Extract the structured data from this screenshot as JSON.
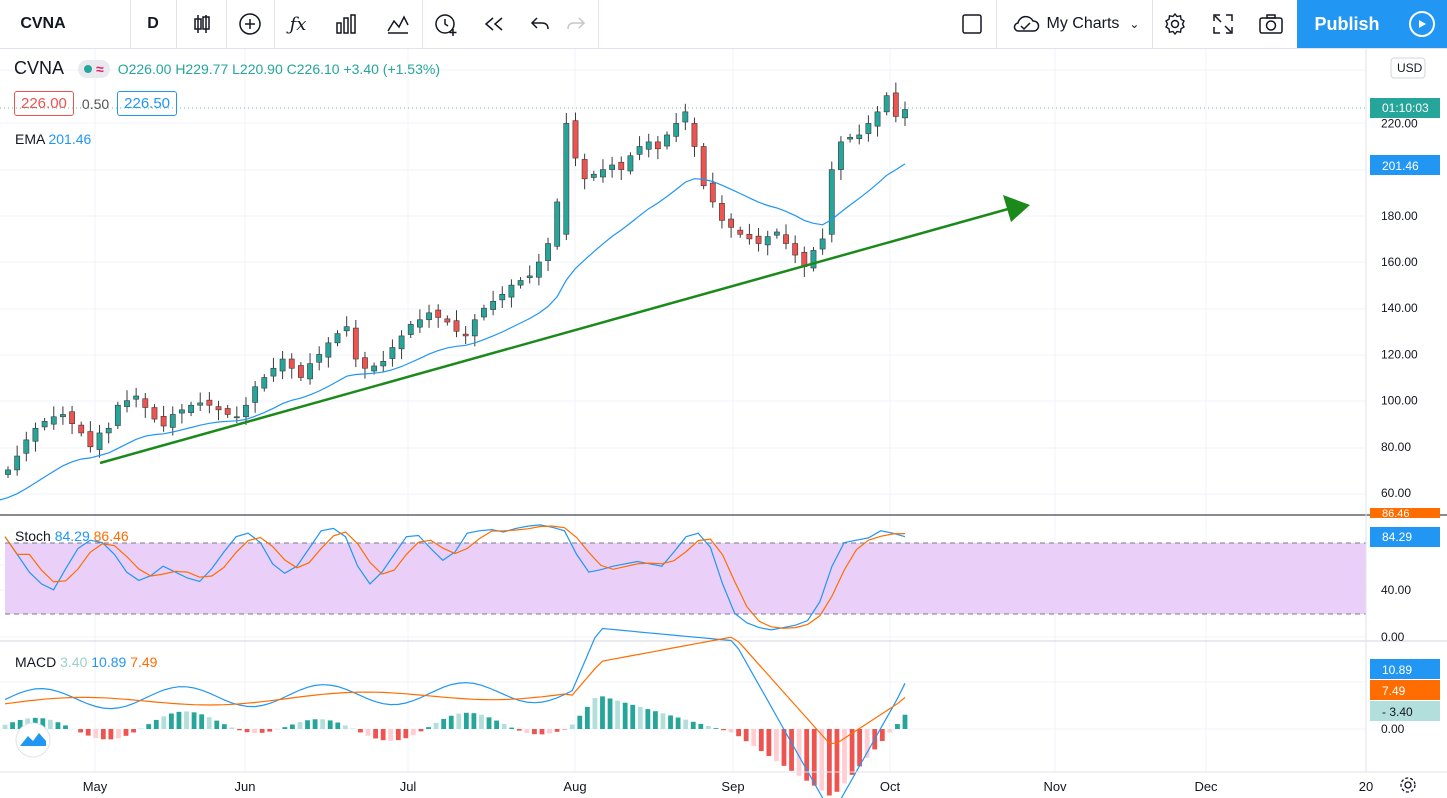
{
  "toolbar": {
    "symbol": "CVNA",
    "interval": "D",
    "layout": "My Charts",
    "publish": "Publish"
  },
  "legend": {
    "symbol": "CVNA",
    "open": "O226.00",
    "high": "H229.77",
    "low": "L220.90",
    "close": "C226.10",
    "change": "+3.40 (+1.53%)",
    "bid": "226.00",
    "spread": "0.50",
    "ask": "226.50",
    "ema_name": "EMA",
    "ema_value": "201.46"
  },
  "stoch": {
    "name": "Stoch",
    "k": "84.29",
    "d": "86.46"
  },
  "macd": {
    "name": "MACD",
    "hist": "3.40",
    "macd": "10.89",
    "signal": "7.49"
  },
  "price_scale": {
    "currency": "USD",
    "labels": [
      "220.00",
      "180.00",
      "160.00",
      "140.00",
      "120.00",
      "100.00",
      "80.00",
      "60.00"
    ],
    "countdown": "01:10:03",
    "ema_tag": "201.46"
  },
  "stoch_scale": {
    "labels": [
      "40.00",
      "0.00"
    ],
    "k_tag": "84.29",
    "d_tag": "86.46"
  },
  "macd_scale": {
    "labels": [
      "0.00"
    ],
    "macd_tag": "10.89",
    "signal_tag": "7.49",
    "hist_tag": "3.40"
  },
  "time_axis": {
    "labels": [
      "May",
      "Jun",
      "Jul",
      "Aug",
      "Sep",
      "Oct",
      "Nov",
      "Dec",
      "20"
    ]
  },
  "colors": {
    "up": "#26a69a",
    "down": "#ef5350",
    "ema": "#2196f3",
    "trendline": "#1b8a1b",
    "stoch_k": "#2196f3",
    "stoch_d": "#ff6d00",
    "stoch_band": "#e8cbf7",
    "macd_line": "#2196f3",
    "signal_line": "#ff6d00"
  },
  "chart_data": {
    "type": "line",
    "title": "",
    "price": {
      "series": [
        {
          "name": "CVNA",
          "type": "candlestick",
          "close": [
            70,
            76,
            83,
            88,
            91,
            93,
            94,
            90,
            86,
            80,
            86,
            88,
            98,
            100,
            102,
            97,
            92,
            89,
            94,
            96,
            98,
            99,
            98,
            96,
            94,
            93,
            98,
            106,
            110,
            114,
            118,
            114,
            110,
            116,
            120,
            125,
            129,
            132,
            118,
            114,
            115,
            117,
            123,
            128,
            133,
            135,
            138,
            136,
            134,
            130,
            128,
            135,
            140,
            143,
            146,
            150,
            152,
            154,
            160,
            168,
            186,
            220,
            205,
            196,
            198,
            200,
            202,
            200,
            206,
            210,
            212,
            209,
            215,
            220,
            225,
            210,
            193,
            186,
            178,
            175,
            172,
            170,
            168,
            171,
            173,
            168,
            163,
            158,
            165,
            170,
            200,
            212,
            214,
            215,
            220,
            225,
            232,
            223,
            226
          ]
        },
        {
          "name": "EMA",
          "type": "line"
        }
      ],
      "ylim": [
        50,
        240
      ]
    },
    "stoch": {
      "k": "84.29",
      "d": "86.46",
      "band": [
        20,
        80
      ],
      "ylim": [
        0,
        100
      ]
    },
    "macd": {
      "macd": "10.89",
      "signal": "7.49",
      "hist": "3.40"
    }
  }
}
